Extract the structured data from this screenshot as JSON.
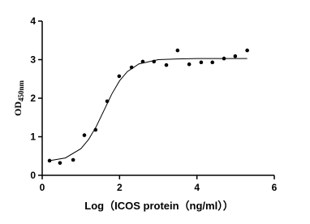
{
  "chart_data": {
    "type": "scatter",
    "x": [
      0.19,
      0.46,
      0.8,
      1.09,
      1.38,
      1.68,
      1.99,
      2.31,
      2.6,
      2.89,
      3.21,
      3.5,
      3.8,
      4.11,
      4.4,
      4.7,
      4.99,
      5.3
    ],
    "values": [
      0.38,
      0.32,
      0.4,
      1.04,
      1.18,
      1.92,
      2.57,
      2.8,
      2.95,
      2.95,
      2.86,
      3.24,
      2.88,
      2.93,
      2.93,
      3.03,
      3.09,
      3.24
    ],
    "fit": {
      "x": [
        0.2,
        0.6,
        1.0,
        1.2,
        1.4,
        1.6,
        1.8,
        2.0,
        2.2,
        2.5,
        3.0,
        3.5,
        4.0,
        5.3
      ],
      "values": [
        0.38,
        0.45,
        0.69,
        0.93,
        1.27,
        1.69,
        2.11,
        2.45,
        2.69,
        2.89,
        3.0,
        3.02,
        3.03,
        3.03
      ]
    },
    "color": "#000000",
    "xlabel": "Log（ICOS protein（ng/ml））",
    "ylabel": "OD",
    "ylabel_sub": "450nm",
    "xlim": [
      0,
      6
    ],
    "xticks": [
      0,
      2,
      4,
      6
    ],
    "ylim": [
      0,
      4
    ],
    "yticks": [
      0,
      1,
      2,
      3,
      4
    ]
  }
}
